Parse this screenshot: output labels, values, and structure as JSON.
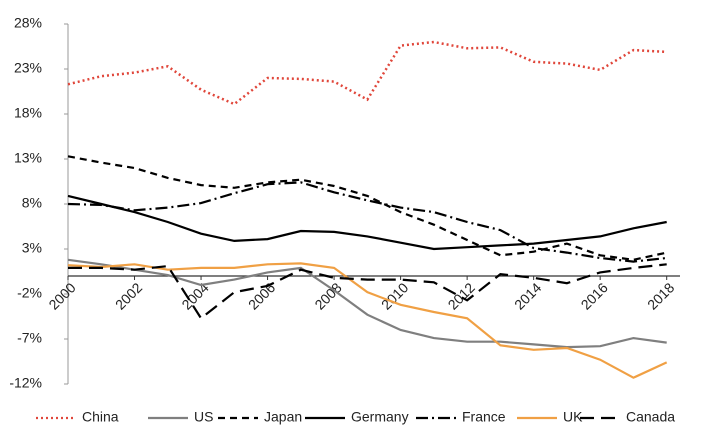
{
  "chart_data": {
    "type": "line",
    "x": [
      2000,
      2001,
      2002,
      2003,
      2004,
      2005,
      2006,
      2007,
      2008,
      2009,
      2010,
      2011,
      2012,
      2013,
      2014,
      2015,
      2016,
      2017,
      2018
    ],
    "xlim": [
      2000,
      2018.4
    ],
    "xticks": [
      2000,
      2002,
      2004,
      2006,
      2008,
      2010,
      2012,
      2014,
      2016,
      2018
    ],
    "ylim": [
      -12,
      28
    ],
    "yticks": [
      {
        "value": -12,
        "label": "-12%"
      },
      {
        "value": -7,
        "label": "-7%"
      },
      {
        "value": -2,
        "label": "-2%"
      },
      {
        "value": 3,
        "label": "3%"
      },
      {
        "value": 8,
        "label": "8%"
      },
      {
        "value": 13,
        "label": "13%"
      },
      {
        "value": 18,
        "label": "18%"
      },
      {
        "value": 23,
        "label": "23%"
      },
      {
        "value": 28,
        "label": "28%"
      }
    ],
    "grid": false,
    "legend": "bottom",
    "series": [
      {
        "name": "China",
        "color": "#e0463a",
        "dash": "dotted",
        "values": [
          21.3,
          22.2,
          22.6,
          23.3,
          20.7,
          19.1,
          22,
          21.9,
          21.6,
          19.6,
          25.6,
          26,
          25.3,
          25.4,
          23.8,
          23.6,
          22.9,
          25.1,
          24.9
        ]
      },
      {
        "name": "US",
        "color": "#7f7f7f",
        "dash": "solid",
        "values": [
          1.8,
          1.3,
          0.7,
          0.1,
          -1,
          -0.4,
          0.4,
          0.9,
          -1.6,
          -4.3,
          -6,
          -6.9,
          -7.3,
          -7.3,
          -7.6,
          -7.9,
          -7.8,
          -6.9,
          -7.4
        ]
      },
      {
        "name": "Japan",
        "color": "#000000",
        "dash": "dashed",
        "values": [
          13.3,
          12.6,
          12,
          10.9,
          10.1,
          9.8,
          10.4,
          10.7,
          10,
          8.9,
          7.1,
          5.7,
          4,
          2.3,
          2.7,
          3.6,
          2.3,
          1.8,
          2.6
        ]
      },
      {
        "name": "Germany",
        "color": "#000000",
        "dash": "solid",
        "values": [
          8.9,
          8,
          7.1,
          6,
          4.7,
          3.9,
          4.1,
          5,
          4.9,
          4.4,
          3.7,
          3,
          3.2,
          3.4,
          3.6,
          4,
          4.4,
          5.3,
          6
        ]
      },
      {
        "name": "France",
        "color": "#000000",
        "dash": "dashdot",
        "values": [
          8,
          7.9,
          7.3,
          7.6,
          8.1,
          9.2,
          10.2,
          10.4,
          9.3,
          8.4,
          7.6,
          7.1,
          6,
          5.1,
          3.1,
          2.6,
          2,
          1.6,
          2
        ]
      },
      {
        "name": "UK",
        "color": "#f0a044",
        "dash": "solid",
        "values": [
          1.2,
          1,
          1.3,
          0.7,
          0.9,
          0.9,
          1.3,
          1.4,
          0.9,
          -1.8,
          -3.2,
          -4,
          -4.7,
          -7.7,
          -8.2,
          -8,
          -9.3,
          -11.3,
          -9.6
        ]
      },
      {
        "name": "Canada",
        "color": "#000000",
        "dash": "longdash",
        "values": [
          0.9,
          0.9,
          0.7,
          1.1,
          -4.7,
          -1.8,
          -1.1,
          0.7,
          -0.2,
          -0.4,
          -0.4,
          -0.7,
          -2.7,
          0.2,
          -0.2,
          -0.8,
          0.4,
          0.9,
          1.3
        ]
      }
    ]
  }
}
